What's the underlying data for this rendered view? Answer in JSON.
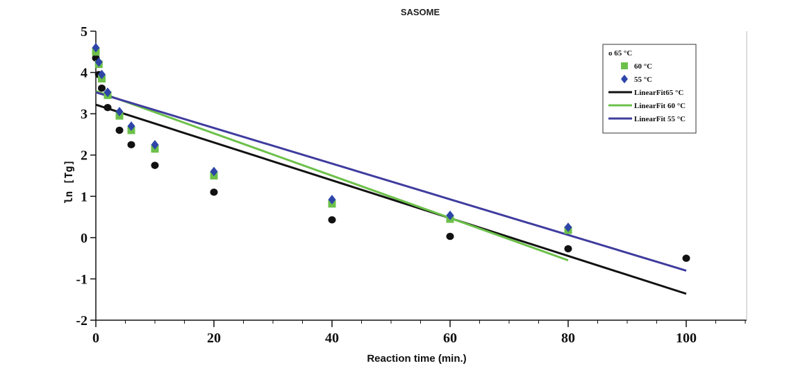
{
  "chart_data": {
    "type": "scatter",
    "title": "SASOME",
    "xlabel": "Reaction time (min.)",
    "ylabel": "ln [Tg]",
    "xlim": [
      0,
      100
    ],
    "ylim": [
      -2,
      5
    ],
    "xticks": [
      0,
      20,
      40,
      60,
      80,
      100
    ],
    "yticks": [
      -2,
      -1,
      0,
      1,
      2,
      3,
      4,
      5
    ],
    "legend_position": "top-right",
    "series": [
      {
        "name": "o 65 °C",
        "marker": "circle",
        "color": "#111111",
        "points": [
          {
            "x": 0,
            "y": 4.35
          },
          {
            "x": 0.5,
            "y": 3.95
          },
          {
            "x": 1,
            "y": 3.62
          },
          {
            "x": 2,
            "y": 3.15
          },
          {
            "x": 4,
            "y": 2.6
          },
          {
            "x": 6,
            "y": 2.25
          },
          {
            "x": 10,
            "y": 1.75
          },
          {
            "x": 20,
            "y": 1.1
          },
          {
            "x": 40,
            "y": 0.43
          },
          {
            "x": 60,
            "y": 0.03
          },
          {
            "x": 80,
            "y": -0.27
          },
          {
            "x": 100,
            "y": -0.5
          }
        ]
      },
      {
        "name": "60 °C",
        "marker": "square",
        "color": "#6cc04a",
        "points": [
          {
            "x": 0,
            "y": 4.5
          },
          {
            "x": 0.5,
            "y": 4.2
          },
          {
            "x": 1,
            "y": 3.85
          },
          {
            "x": 2,
            "y": 3.45
          },
          {
            "x": 4,
            "y": 2.95
          },
          {
            "x": 6,
            "y": 2.6
          },
          {
            "x": 10,
            "y": 2.15
          },
          {
            "x": 20,
            "y": 1.5
          },
          {
            "x": 40,
            "y": 0.82
          },
          {
            "x": 60,
            "y": 0.45
          },
          {
            "x": 80,
            "y": 0.18
          }
        ]
      },
      {
        "name": "55 °C",
        "marker": "diamond",
        "color": "#2e45a8",
        "points": [
          {
            "x": 0,
            "y": 4.6
          },
          {
            "x": 0.5,
            "y": 4.25
          },
          {
            "x": 1,
            "y": 3.95
          },
          {
            "x": 2,
            "y": 3.52
          },
          {
            "x": 4,
            "y": 3.05
          },
          {
            "x": 6,
            "y": 2.7
          },
          {
            "x": 10,
            "y": 2.25
          },
          {
            "x": 20,
            "y": 1.6
          },
          {
            "x": 40,
            "y": 0.92
          },
          {
            "x": 60,
            "y": 0.54
          },
          {
            "x": 80,
            "y": 0.25
          }
        ]
      }
    ],
    "fits": [
      {
        "name": "LinearFit65 °C",
        "color": "#111111",
        "x": [
          0,
          100
        ],
        "y": [
          3.22,
          -1.36
        ]
      },
      {
        "name": "LinearFit 60 °C",
        "color": "#6cc04a",
        "x": [
          0,
          80
        ],
        "y": [
          3.55,
          -0.55
        ]
      },
      {
        "name": "LinearFit 55 °C",
        "color": "#3f3c9e",
        "x": [
          0,
          100
        ],
        "y": [
          3.52,
          -0.8
        ]
      }
    ]
  }
}
